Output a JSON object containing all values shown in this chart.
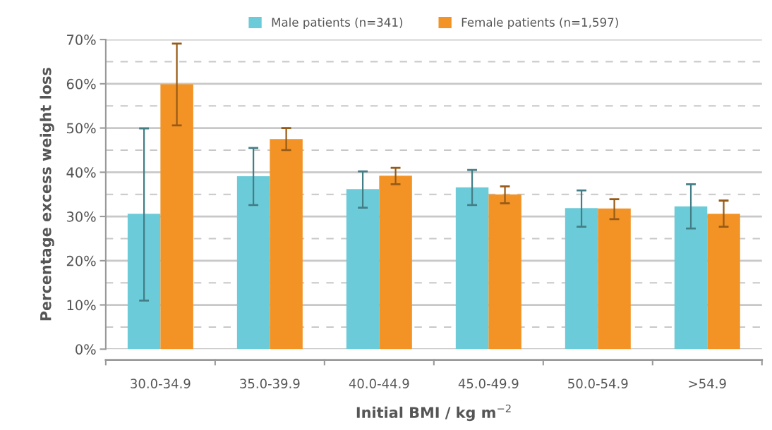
{
  "chart_data": {
    "type": "bar",
    "xlabel": "Initial BMI / kg m$^{−2}$",
    "ylabel": "Percentage excess weight loss",
    "categories": [
      "30.0-34.9",
      "35.0-39.9",
      "40.0-44.9",
      "45.0-49.9",
      "50.0-54.9",
      ">54.9"
    ],
    "series": [
      {
        "name": "Male patients (n=341)",
        "color": "#6ccbd8",
        "values": [
          30.6,
          39.1,
          36.2,
          36.6,
          31.9,
          32.3
        ],
        "errors": [
          [
            11.0,
            49.9
          ],
          [
            32.6,
            45.5
          ],
          [
            32.0,
            40.2
          ],
          [
            32.6,
            40.5
          ],
          [
            27.7,
            35.9
          ],
          [
            27.3,
            37.3
          ]
        ]
      },
      {
        "name": "Female patients (n=1,597)",
        "color": "#f39325",
        "values": [
          59.9,
          47.5,
          39.2,
          35.0,
          31.8,
          30.6
        ],
        "errors": [
          [
            50.6,
            69.1
          ],
          [
            45.0,
            50.0
          ],
          [
            37.3,
            41.0
          ],
          [
            33.0,
            36.8
          ],
          [
            29.4,
            33.9
          ],
          [
            27.7,
            33.6
          ]
        ]
      }
    ],
    "ylim": [
      0,
      70
    ],
    "yticks": [
      {
        "value": 0,
        "label": "0%"
      },
      {
        "value": 10,
        "label": "10%"
      },
      {
        "value": 20,
        "label": "20%"
      },
      {
        "value": 30,
        "label": "30%"
      },
      {
        "value": 40,
        "label": "40%"
      },
      {
        "value": 50,
        "label": "50%"
      },
      {
        "value": 60,
        "label": "60%"
      },
      {
        "value": 70,
        "label": "70%"
      }
    ],
    "grid": "y",
    "legend": "top"
  }
}
